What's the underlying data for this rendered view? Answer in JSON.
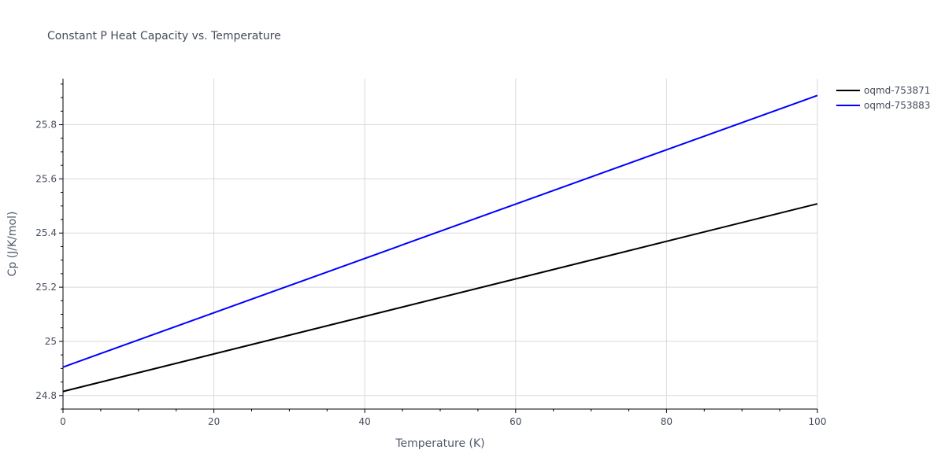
{
  "chart_data": {
    "type": "line",
    "title": "Constant P Heat Capacity vs. Temperature",
    "xlabel": "Temperature (K)",
    "ylabel": "Cp (J/K/mol)",
    "xlim": [
      0,
      100
    ],
    "ylim": [
      24.75,
      25.97
    ],
    "x_ticks": [
      0,
      20,
      40,
      60,
      80,
      100
    ],
    "x_tick_labels": [
      "0",
      "20",
      "40",
      "60",
      "80",
      "100"
    ],
    "y_ticks": [
      24.8,
      25.0,
      25.2,
      25.4,
      25.6,
      25.8
    ],
    "y_tick_labels": [
      "24.8",
      "25",
      "25.2",
      "25.4",
      "25.6",
      "25.8"
    ],
    "grid": true,
    "legend_position": "top-right",
    "series": [
      {
        "name": "oqmd-753871",
        "color": "#000000",
        "x": [
          0,
          100
        ],
        "y": [
          24.815,
          25.508
        ]
      },
      {
        "name": "oqmd-753883",
        "color": "#0000ff",
        "x": [
          0,
          100
        ],
        "y": [
          24.905,
          25.908
        ]
      }
    ]
  }
}
